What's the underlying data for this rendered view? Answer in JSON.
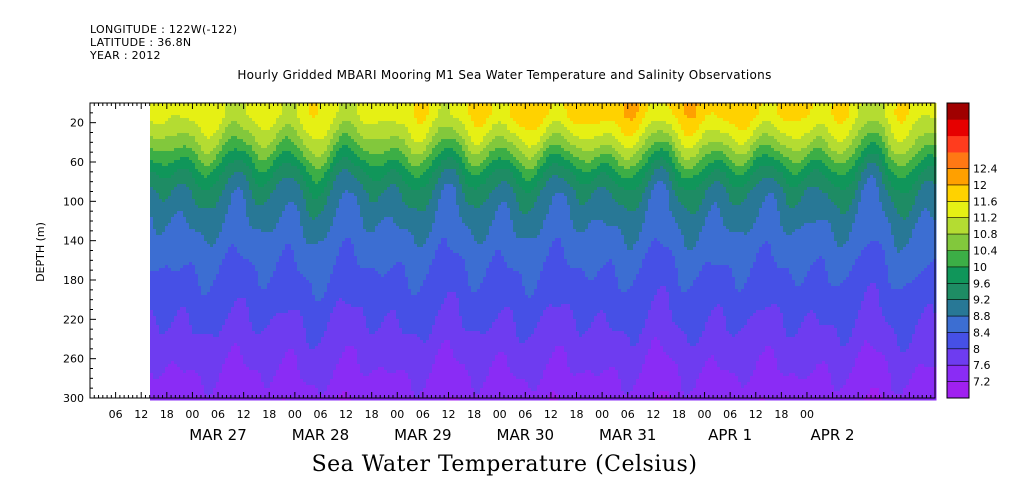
{
  "header": {
    "longitude": "LONGITUDE : 122W(-122)",
    "latitude": "LATITUDE : 36.8N",
    "year": "YEAR : 2012"
  },
  "chart_data": {
    "type": "heatmap",
    "title": "Hourly Gridded MBARI Mooring M1 Sea Water Temperature and Salinity Observations",
    "xlabel": "Sea Water Temperature (Celsius)",
    "ylabel": "DEPTH (m)",
    "ylim": [
      300,
      0
    ],
    "y_ticks": [
      "20",
      "60",
      "100",
      "140",
      "180",
      "220",
      "260",
      "300"
    ],
    "x_hour_ticks": [
      "06",
      "12",
      "18",
      "00",
      "06",
      "12",
      "18",
      "00",
      "06",
      "12",
      "18",
      "00",
      "06",
      "12",
      "18",
      "00",
      "06",
      "12",
      "18",
      "00",
      "06",
      "12",
      "18",
      "00",
      "06",
      "12",
      "18",
      "00"
    ],
    "x_day_labels": [
      "MAR 27",
      "MAR 28",
      "MAR 29",
      "MAR 30",
      "MAR 31",
      "APR  1",
      "APR  2"
    ],
    "x_range": [
      "2012-03-26 00:00",
      "2012-04-03 06:00"
    ],
    "data_start": "2012-03-26 14:00",
    "colorbar": {
      "levels": [
        "7.2",
        "7.6",
        "8",
        "8.4",
        "8.8",
        "9.2",
        "9.6",
        "10",
        "10.4",
        "10.8",
        "11.2",
        "11.6",
        "12",
        "12.4"
      ],
      "colors": [
        "#a020f0",
        "#8a2cf5",
        "#6e3cf0",
        "#4650e6",
        "#3c6ed2",
        "#287896",
        "#1e8c64",
        "#10965a",
        "#3cae46",
        "#82c83c",
        "#b4dc32",
        "#e6f014",
        "#ffd200",
        "#ffa000",
        "#ff7814",
        "#ff3c1e",
        "#e60000",
        "#a00000"
      ]
    },
    "depth_profile": [
      {
        "depth": 10,
        "temp": 11.3
      },
      {
        "depth": 25,
        "temp": 11.0
      },
      {
        "depth": 40,
        "temp": 10.6
      },
      {
        "depth": 55,
        "temp": 10.1
      },
      {
        "depth": 70,
        "temp": 9.6
      },
      {
        "depth": 90,
        "temp": 9.15
      },
      {
        "depth": 120,
        "temp": 8.8
      },
      {
        "depth": 160,
        "temp": 8.45
      },
      {
        "depth": 200,
        "temp": 8.15
      },
      {
        "depth": 240,
        "temp": 7.85
      },
      {
        "depth": 270,
        "temp": 7.6
      },
      {
        "depth": 300,
        "temp": 7.35
      }
    ]
  }
}
